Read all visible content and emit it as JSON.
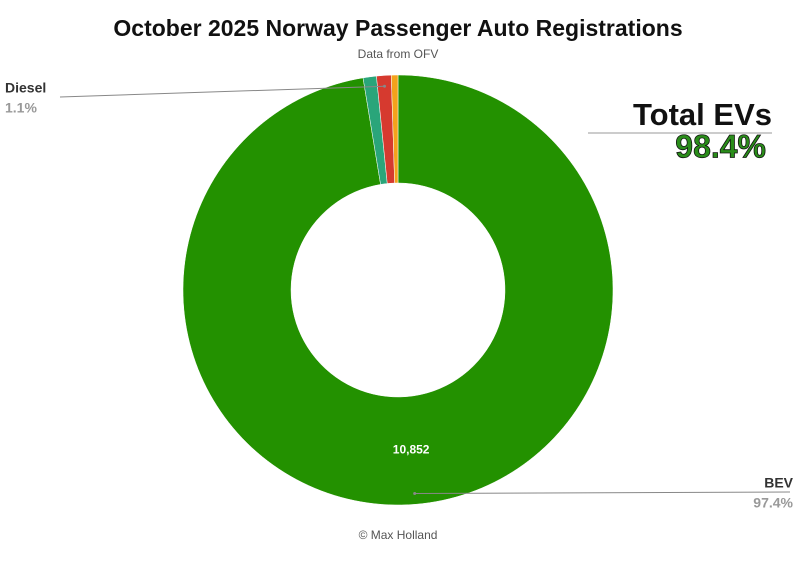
{
  "chart_data": {
    "type": "pie",
    "donut": true,
    "title": "October 2025 Norway Passenger Auto Registrations",
    "subtitle": "Data from OFV",
    "credit": "© Max Holland",
    "annotation": {
      "title": "Total EVs",
      "value": {
        "value": 98.4,
        "label": "98.4%"
      }
    },
    "categories": [
      "BEV",
      null,
      "Diesel",
      null
    ],
    "values": [
      97.4,
      1.0,
      1.1,
      0.5
    ],
    "value_labels": [
      "97.4%",
      null,
      "1.1%",
      null
    ],
    "count_labels": [
      {
        "value": 10852,
        "label": "10,852"
      },
      null,
      null,
      null
    ],
    "colors": [
      "#239100",
      "#2aa57a",
      "#d63a2f",
      "#f4a21c"
    ]
  }
}
